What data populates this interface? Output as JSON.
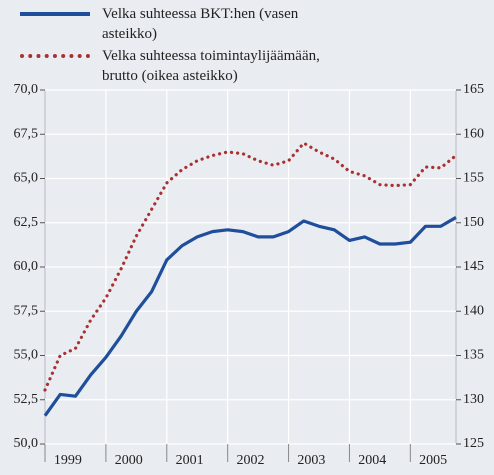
{
  "chart_data": {
    "type": "line",
    "categories": [
      "1999",
      null,
      null,
      null,
      "2000",
      null,
      null,
      null,
      "2001",
      null,
      null,
      null,
      "2002",
      null,
      null,
      null,
      "2003",
      null,
      null,
      null,
      "2004",
      null,
      null,
      null,
      "2005",
      null,
      null,
      null
    ],
    "series": [
      {
        "name": "Velka suhteessa BKT:hen (vasen asteikko)",
        "color": "#1f4e9a",
        "style": "solid",
        "values": [
          51.6,
          52.8,
          52.7,
          53.9,
          54.9,
          56.1,
          57.5,
          58.6,
          60.4,
          61.2,
          61.7,
          62.0,
          62.1,
          62.0,
          61.7,
          61.7,
          62.0,
          62.6,
          62.3,
          62.1,
          61.5,
          61.7,
          61.3,
          61.3,
          61.4,
          62.3,
          62.3,
          62.8
        ]
      },
      {
        "name": "Velka suhteessa toimintaylijäämään, brutto (oikea asteikko)",
        "color": "#a83232",
        "style": "dotted",
        "axis": "y2",
        "values": [
          131.1,
          135.0,
          135.8,
          139.0,
          141.5,
          144.8,
          148.5,
          151.5,
          154.5,
          156.0,
          157.0,
          157.6,
          158.0,
          157.8,
          157.0,
          156.5,
          157.0,
          159.0,
          158.0,
          157.2,
          155.8,
          155.3,
          154.3,
          154.2,
          154.3,
          156.3,
          156.2,
          157.6
        ]
      }
    ],
    "ylim": [
      50,
      70
    ],
    "yticks": [
      {
        "value": 50,
        "label": "50,0"
      },
      {
        "value": 52.5,
        "label": "52,5"
      },
      {
        "value": 55,
        "label": "55,0"
      },
      {
        "value": 57.5,
        "label": "57,5"
      },
      {
        "value": 60,
        "label": "60,0"
      },
      {
        "value": 62.5,
        "label": "62,5"
      },
      {
        "value": 65,
        "label": "65,0"
      },
      {
        "value": 67.5,
        "label": "67,5"
      },
      {
        "value": 70,
        "label": "70,0"
      }
    ],
    "y2lim": [
      125,
      165
    ],
    "y2ticks": [
      125,
      130,
      135,
      140,
      145,
      150,
      155,
      160,
      165
    ],
    "grid": true
  }
}
